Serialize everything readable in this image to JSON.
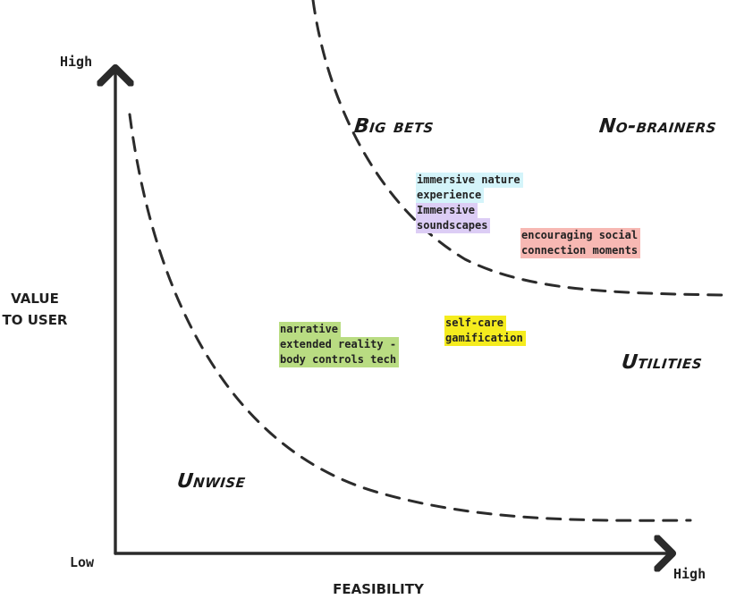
{
  "axes": {
    "y": {
      "title_line1": "VALUE",
      "title_line2": "TO USER",
      "high": "High"
    },
    "x": {
      "title": "FEASIBILITY",
      "high": "High"
    },
    "origin": "Low"
  },
  "quadrants": {
    "big_bets": "Big bets",
    "no_brainers": "No-brainers",
    "utilities": "Utilities",
    "unwise": "Unwise"
  },
  "notes": [
    {
      "id": "immersive-nature",
      "lines": [
        "immersive nature",
        "experience"
      ],
      "color": "#d4f4fa"
    },
    {
      "id": "immersive-soundscapes",
      "lines": [
        "Immersive",
        "soundscapes"
      ],
      "color": "#dccdf5"
    },
    {
      "id": "social-connection",
      "lines": [
        "encouraging social",
        "connection moments"
      ],
      "color": "#f7b8b3"
    },
    {
      "id": "self-care",
      "lines": [
        "self-care",
        "gamification"
      ],
      "color": "#f5ec1e"
    },
    {
      "id": "narrative-xr",
      "lines": [
        "narrative",
        "extended reality -",
        "body controls tech"
      ],
      "color": "#b9dc82"
    }
  ],
  "colors": {
    "ink": "#2b2b2b"
  }
}
